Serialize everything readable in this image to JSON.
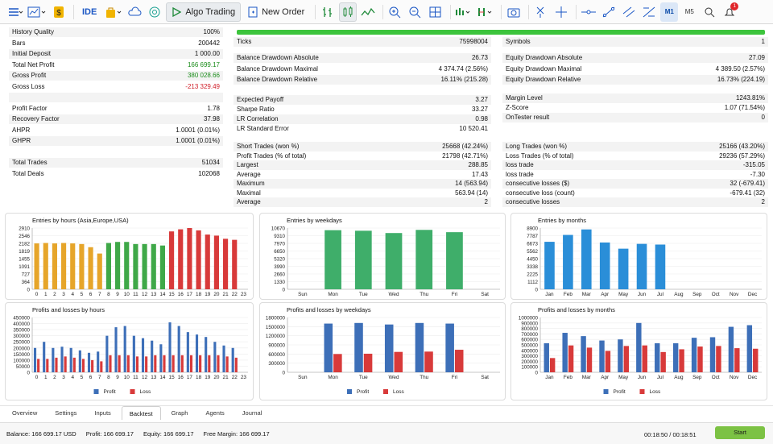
{
  "toolbar": {
    "algo": "Algo Trading",
    "neworder": "New Order",
    "ide": "IDE",
    "m1": "M1",
    "m5": "M5",
    "notifications": "1"
  },
  "left": [
    {
      "k": "History Quality",
      "v": "100%"
    },
    {
      "k": "Bars",
      "v": "200442"
    },
    {
      "k": "Initial Deposit",
      "v": "1 000.00"
    },
    {
      "k": "Total Net Profit",
      "v": "166 699.17",
      "c": "green"
    },
    {
      "k": "Gross Profit",
      "v": "380 028.66",
      "c": "green"
    },
    {
      "k": "Gross Loss",
      "v": "-213 329.49",
      "c": "red"
    },
    {
      "k": "",
      "v": ""
    },
    {
      "k": "Profit Factor",
      "v": "1.78"
    },
    {
      "k": "Recovery Factor",
      "v": "37.98"
    },
    {
      "k": "AHPR",
      "v": "1.0001 (0.01%)"
    },
    {
      "k": "GHPR",
      "v": "1.0001 (0.01%)"
    },
    {
      "k": "",
      "v": ""
    },
    {
      "k": "Total Trades",
      "v": "51034"
    },
    {
      "k": "Total Deals",
      "v": "102068"
    }
  ],
  "mid1": [
    {
      "k": "Ticks",
      "v": "75998004"
    }
  ],
  "mid2": [
    {
      "k": "Balance Drawdown Absolute",
      "v": "26.73"
    },
    {
      "k": "Balance Drawdown Maximal",
      "v": "4 374.74 (2.56%)"
    },
    {
      "k": "Balance Drawdown Relative",
      "v": "16.11% (215.28)"
    }
  ],
  "mid3": [
    {
      "k": "Expected Payoff",
      "v": "3.27"
    },
    {
      "k": "Sharpe Ratio",
      "v": "33.27"
    },
    {
      "k": "LR Correlation",
      "v": "0.98"
    },
    {
      "k": "LR Standard Error",
      "v": "10 520.41"
    }
  ],
  "mid4": [
    {
      "k": "Short Trades (won %)",
      "v": "25668 (42.24%)"
    },
    {
      "k": "Profit Trades (% of total)",
      "v": "21798 (42.71%)"
    },
    {
      "k": "Largest",
      "v": "288.85"
    },
    {
      "k": "Average",
      "v": "17.43"
    },
    {
      "k": "Maximum",
      "v": "14 (563.94)"
    },
    {
      "k": "Maximal",
      "v": "563.94 (14)"
    },
    {
      "k": "Average",
      "v": "2"
    }
  ],
  "right1": [
    {
      "k": "Symbols",
      "v": "1"
    }
  ],
  "right2": [
    {
      "k": "Equity Drawdown Absolute",
      "v": "27.09"
    },
    {
      "k": "Equity Drawdown Maximal",
      "v": "4 389.50 (2.57%)"
    },
    {
      "k": "Equity Drawdown Relative",
      "v": "16.73% (224.19)"
    }
  ],
  "right3": [
    {
      "k": "Margin Level",
      "v": "1243.81%"
    },
    {
      "k": "Z-Score",
      "v": "1.07 (71.54%)"
    },
    {
      "k": "OnTester result",
      "v": "0"
    }
  ],
  "right4": [
    {
      "k": "Long Trades (won %)",
      "v": "25166 (43.20%)"
    },
    {
      "k": "Loss Trades (% of total)",
      "v": "29236 (57.29%)"
    },
    {
      "k": "loss trade",
      "v": "-315.05"
    },
    {
      "k": "loss trade",
      "v": "-7.30"
    },
    {
      "k": "consecutive losses ($)",
      "v": "32 (-679.41)"
    },
    {
      "k": "consecutive loss (count)",
      "v": "-679.41 (32)"
    },
    {
      "k": "consecutive losses",
      "v": "2"
    }
  ],
  "chart_data": [
    {
      "type": "bar",
      "title": "Entries by hours (Asia,Europe,USA)",
      "categories": [
        "0",
        "1",
        "2",
        "3",
        "4",
        "5",
        "6",
        "7",
        "8",
        "9",
        "10",
        "11",
        "12",
        "13",
        "14",
        "15",
        "16",
        "17",
        "18",
        "19",
        "20",
        "21",
        "22",
        "23"
      ],
      "values": [
        2180,
        2200,
        2180,
        2200,
        2180,
        2150,
        2000,
        1700,
        2200,
        2250,
        2250,
        2150,
        2150,
        2150,
        2080,
        2750,
        2850,
        2910,
        2800,
        2600,
        2550,
        2400,
        2350,
        null
      ],
      "colors": [
        "#e6a52a",
        "#e6a52a",
        "#e6a52a",
        "#e6a52a",
        "#e6a52a",
        "#e6a52a",
        "#e6a52a",
        "#e6a52a",
        "#3fa848",
        "#3fa848",
        "#3fa848",
        "#3fa848",
        "#3fa848",
        "#3fa848",
        "#3fa848",
        "#d83a3a",
        "#d83a3a",
        "#d83a3a",
        "#d83a3a",
        "#d83a3a",
        "#d83a3a",
        "#d83a3a",
        "#d83a3a",
        "#d83a3a"
      ],
      "yticks": [
        "2910",
        "2546",
        "2182",
        "1819",
        "1455",
        "1091",
        "727",
        "364",
        "0"
      ],
      "ymax": 2910
    },
    {
      "type": "bar",
      "title": "Entries by weekdays",
      "categories": [
        "Sun",
        "Mon",
        "Tue",
        "Wed",
        "Thu",
        "Fri",
        "Sat"
      ],
      "values": [
        0,
        10300,
        10200,
        9800,
        10350,
        9950,
        0
      ],
      "colors": [
        "#3fae6a"
      ],
      "yticks": [
        "10670",
        "9310",
        "7970",
        "6650",
        "5320",
        "3990",
        "2660",
        "1330",
        "0"
      ],
      "ymax": 10670
    },
    {
      "type": "bar",
      "title": "Entries by months",
      "categories": [
        "Jan",
        "Feb",
        "Mar",
        "Apr",
        "May",
        "Jun",
        "Jul",
        "Aug",
        "Sep",
        "Oct",
        "Nov",
        "Dec"
      ],
      "values": [
        6900,
        7900,
        8700,
        6800,
        5900,
        6600,
        6500,
        0,
        0,
        0,
        0,
        0
      ],
      "colors": [
        "#2a8ed8"
      ],
      "yticks": [
        "8900",
        "7787",
        "6673",
        "5562",
        "4450",
        "3338",
        "2225",
        "1112",
        "0"
      ],
      "ymax": 8900
    },
    {
      "type": "bar",
      "title": "Profits and losses by hours",
      "categories": [
        "0",
        "1",
        "2",
        "3",
        "4",
        "5",
        "6",
        "7",
        "8",
        "9",
        "10",
        "11",
        "12",
        "13",
        "14",
        "15",
        "16",
        "17",
        "18",
        "19",
        "20",
        "21",
        "22",
        "23"
      ],
      "series": [
        {
          "name": "Profit",
          "values": [
            200000,
            250000,
            200000,
            210000,
            200000,
            180000,
            160000,
            170000,
            300000,
            370000,
            380000,
            300000,
            280000,
            260000,
            230000,
            410000,
            380000,
            330000,
            310000,
            290000,
            250000,
            220000,
            200000,
            0
          ]
        },
        {
          "name": "Loss",
          "values": [
            110000,
            110000,
            120000,
            130000,
            120000,
            110000,
            100000,
            90000,
            140000,
            140000,
            140000,
            130000,
            130000,
            140000,
            140000,
            140000,
            140000,
            140000,
            140000,
            140000,
            140000,
            130000,
            120000,
            0
          ]
        }
      ],
      "colors": [
        "#3d6fb8",
        "#d83a3a"
      ],
      "yticks": [
        "450000",
        "400000",
        "350000",
        "300000",
        "250000",
        "200000",
        "150000",
        "100000",
        "50000",
        "0"
      ],
      "ymax": 450000
    },
    {
      "type": "bar",
      "title": "Profits and losses by weekdays",
      "categories": [
        "Sun",
        "Mon",
        "Tue",
        "Wed",
        "Thu",
        "Fri",
        "Sat"
      ],
      "series": [
        {
          "name": "Profit",
          "values": [
            0,
            1600000,
            1620000,
            1570000,
            1620000,
            1600000,
            0
          ]
        },
        {
          "name": "Loss",
          "values": [
            0,
            600000,
            610000,
            670000,
            680000,
            740000,
            0
          ]
        }
      ],
      "colors": [
        "#3d6fb8",
        "#d83a3a"
      ],
      "yticks": [
        "1800000",
        "1500000",
        "1200000",
        "900000",
        "600000",
        "300000",
        "0"
      ],
      "ymax": 1800000
    },
    {
      "type": "bar",
      "title": "Profits and losses by months",
      "categories": [
        "Jan",
        "Feb",
        "Mar",
        "Apr",
        "May",
        "Jun",
        "Jul",
        "Aug",
        "Sep",
        "Oct",
        "Nov",
        "Dec"
      ],
      "series": [
        {
          "name": "Profit",
          "values": [
            530000,
            720000,
            660000,
            580000,
            600000,
            900000,
            530000,
            530000,
            630000,
            640000,
            830000,
            860000
          ]
        },
        {
          "name": "Loss",
          "values": [
            260000,
            490000,
            450000,
            390000,
            480000,
            490000,
            370000,
            420000,
            470000,
            480000,
            440000,
            430000
          ]
        }
      ],
      "colors": [
        "#3d6fb8",
        "#d83a3a"
      ],
      "yticks": [
        "1000000",
        "900000",
        "800000",
        "700000",
        "600000",
        "500000",
        "400000",
        "300000",
        "200000",
        "100000",
        "0"
      ],
      "ymax": 1000000
    }
  ],
  "legend": {
    "profit": "Profit",
    "loss": "Loss"
  },
  "tabs": [
    "Overview",
    "Settings",
    "Inputs",
    "Backtest",
    "Graph",
    "Agents",
    "Journal"
  ],
  "activeTab": "Backtest",
  "status": {
    "balance": "Balance: 166 699.17 USD",
    "profit": "Profit: 166 699.17",
    "equity": "Equity: 166 699.17",
    "margin": "Free Margin: 166 699.17",
    "timer": "00:18:50 / 00:18:51",
    "start": "Start"
  }
}
